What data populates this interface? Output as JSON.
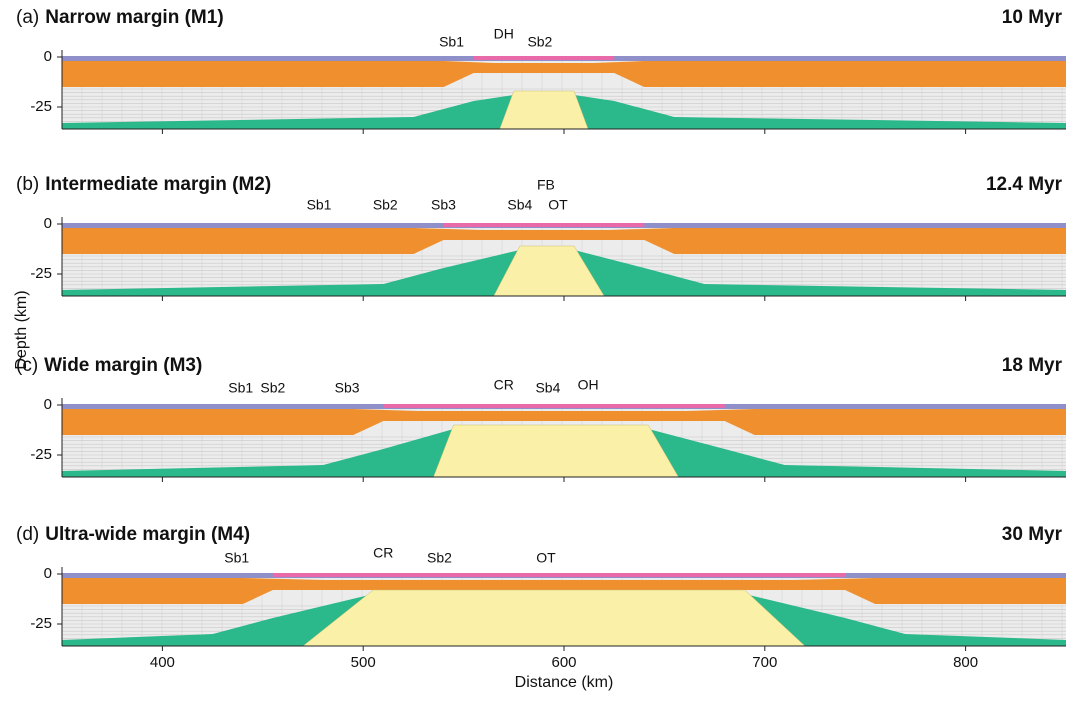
{
  "chart_data": [
    {
      "type": "section",
      "label": "(a)",
      "title": "Narrow margin (M1)",
      "time": "10 Myr",
      "annotations": [
        {
          "text": "Sb1",
          "x": 544,
          "y": 3.5
        },
        {
          "text": "DH",
          "x": 570,
          "y": 7.5
        },
        {
          "text": "Sb2",
          "x": 588,
          "y": 3.5
        }
      ],
      "xlim": [
        350,
        850
      ],
      "xticks": [
        400,
        500,
        600,
        700,
        800
      ],
      "ylim": [
        -36,
        3.5
      ],
      "yticks": [
        0,
        -25
      ]
    },
    {
      "type": "section",
      "label": "(b)",
      "title": "Intermediate margin (M2)",
      "time": "12.4 Myr",
      "annotations": [
        {
          "text": "Sb1",
          "x": 478,
          "y": 5.5
        },
        {
          "text": "Sb2",
          "x": 511,
          "y": 5.5
        },
        {
          "text": "Sb3",
          "x": 540,
          "y": 5.5
        },
        {
          "text": "Sb4",
          "x": 578,
          "y": 5.5
        },
        {
          "text": "FB",
          "x": 591,
          "y": 15.5
        },
        {
          "text": "OT",
          "x": 597,
          "y": 5.5
        }
      ],
      "xlim": [
        350,
        850
      ],
      "xticks": [
        400,
        500,
        600,
        700,
        800
      ],
      "ylim": [
        -36,
        3.5
      ],
      "yticks": [
        0,
        -25
      ]
    },
    {
      "type": "section",
      "label": "(c)",
      "title": "Wide margin (M3)",
      "time": "18 Myr",
      "annotations": [
        {
          "text": "Sb1",
          "x": 439,
          "y": 4.5
        },
        {
          "text": "Sb2",
          "x": 455,
          "y": 4.5
        },
        {
          "text": "Sb3",
          "x": 492,
          "y": 4.5
        },
        {
          "text": "CR",
          "x": 570,
          "y": 6
        },
        {
          "text": "Sb4",
          "x": 592,
          "y": 4.5
        },
        {
          "text": "OH",
          "x": 612,
          "y": 6
        }
      ],
      "xlim": [
        350,
        850
      ],
      "xticks": [
        400,
        500,
        600,
        700,
        800
      ],
      "ylim": [
        -36,
        3.5
      ],
      "yticks": [
        0,
        -25
      ]
    },
    {
      "type": "section",
      "label": "(d)",
      "title": "Ultra-wide margin (M4)",
      "time": "30 Myr",
      "annotations": [
        {
          "text": "Sb1",
          "x": 437,
          "y": 4
        },
        {
          "text": "CR",
          "x": 510,
          "y": 6.5
        },
        {
          "text": "Sb2",
          "x": 538,
          "y": 4
        },
        {
          "text": "OT",
          "x": 591,
          "y": 4
        }
      ],
      "xlim": [
        350,
        850
      ],
      "xticks": [
        400,
        500,
        600,
        700,
        800
      ],
      "ylim": [
        -36,
        3.5
      ],
      "yticks": [
        0,
        -25
      ],
      "xlabel": "Distance (km)"
    }
  ],
  "ylabel": "Depth (km)"
}
